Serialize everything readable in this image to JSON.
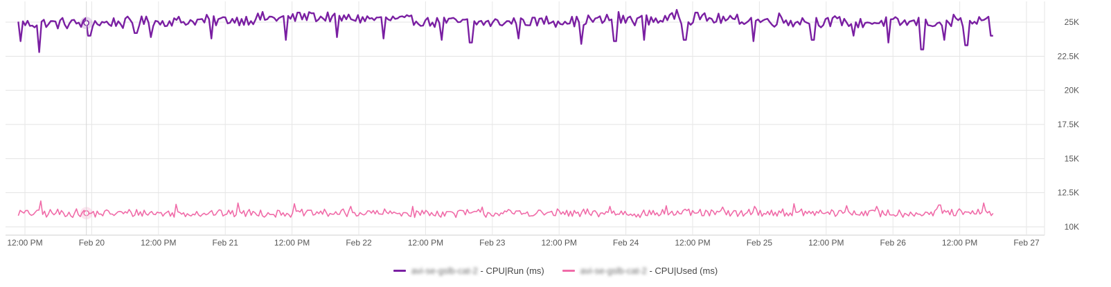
{
  "chart_data": {
    "type": "line",
    "y_ticks": [
      "10K",
      "12.5K",
      "15K",
      "17.5K",
      "20K",
      "22.5K",
      "25K"
    ],
    "y_tick_values": [
      10000,
      12500,
      15000,
      17500,
      20000,
      22500,
      25000
    ],
    "ylim": [
      9750,
      26500
    ],
    "x_ticks": [
      "12:00 PM",
      "Feb 20",
      "12:00 PM",
      "Feb 21",
      "12:00 PM",
      "Feb 22",
      "12:00 PM",
      "Feb 23",
      "12:00 PM",
      "Feb 24",
      "12:00 PM",
      "Feb 25",
      "12:00 PM",
      "Feb 26",
      "12:00 PM",
      "Feb 27"
    ],
    "x_tick_values": [
      19.5,
      20.0,
      20.5,
      21.0,
      21.5,
      22.0,
      22.5,
      23.0,
      23.5,
      24.0,
      24.5,
      25.0,
      25.5,
      26.0,
      26.5,
      27.0
    ],
    "x_unit": "day of February",
    "xlim": [
      19.45,
      27.2
    ],
    "grid": true,
    "legend_placement": "bottom-center",
    "series": [
      {
        "name_hidden": "avi-se-gslb-cat-2",
        "name_suffix": " - CPU|Run (ms)",
        "color": "#7a1fa2",
        "x_range": [
          19.45,
          26.75
        ],
        "baseline_profile": [
          [
            19.45,
            24900
          ],
          [
            20.2,
            24950
          ],
          [
            20.7,
            25050
          ],
          [
            21.1,
            25200
          ],
          [
            21.5,
            25350
          ],
          [
            22.0,
            25300
          ],
          [
            22.5,
            25050
          ],
          [
            23.0,
            24950
          ],
          [
            23.5,
            25100
          ],
          [
            24.0,
            25200
          ],
          [
            24.5,
            25250
          ],
          [
            25.0,
            25100
          ],
          [
            25.5,
            25050
          ],
          [
            26.0,
            24950
          ],
          [
            26.75,
            24950
          ]
        ],
        "noise_amplitude": 450,
        "sample_count": 420,
        "dips": [
          [
            19.47,
            23600
          ],
          [
            19.6,
            22800
          ],
          [
            19.98,
            24000
          ],
          [
            20.33,
            24200
          ],
          [
            20.45,
            23900
          ],
          [
            20.89,
            23800
          ],
          [
            21.45,
            23700
          ],
          [
            21.83,
            23900
          ],
          [
            22.18,
            23800
          ],
          [
            22.62,
            23700
          ],
          [
            22.84,
            23500
          ],
          [
            23.2,
            23800
          ],
          [
            23.67,
            23400
          ],
          [
            23.92,
            23600
          ],
          [
            24.14,
            23700
          ],
          [
            24.44,
            23700
          ],
          [
            24.95,
            23600
          ],
          [
            25.4,
            23700
          ],
          [
            25.7,
            24000
          ],
          [
            25.96,
            23500
          ],
          [
            26.22,
            23000
          ],
          [
            26.38,
            23700
          ],
          [
            26.55,
            23300
          ],
          [
            26.74,
            24000
          ]
        ],
        "peaks": [
          [
            21.28,
            25750
          ],
          [
            21.64,
            25650
          ],
          [
            21.55,
            25700
          ],
          [
            23.95,
            25750
          ],
          [
            24.38,
            25900
          ],
          [
            24.53,
            25700
          ],
          [
            25.15,
            25650
          ],
          [
            26.45,
            25550
          ]
        ]
      },
      {
        "name_hidden": "avi-se-gslb-cat-2",
        "name_suffix": " - CPU|Used (ms)",
        "color": "#f06ba8",
        "x_range": [
          19.45,
          26.75
        ],
        "baseline_profile": [
          [
            19.45,
            11000
          ],
          [
            26.75,
            11000
          ]
        ],
        "noise_amplitude": 320,
        "sample_count": 520,
        "dips": [
          [
            23.65,
            10750
          ],
          [
            24.15,
            10850
          ]
        ],
        "peaks": [
          [
            19.62,
            11900
          ],
          [
            20.63,
            11650
          ],
          [
            21.1,
            11750
          ],
          [
            21.52,
            11700
          ],
          [
            21.94,
            11500
          ],
          [
            22.4,
            11500
          ],
          [
            22.92,
            11450
          ],
          [
            23.88,
            11500
          ],
          [
            24.3,
            11550
          ],
          [
            24.72,
            11450
          ],
          [
            24.96,
            11500
          ],
          [
            25.26,
            11700
          ],
          [
            25.65,
            11550
          ],
          [
            25.88,
            11500
          ],
          [
            26.35,
            11600
          ],
          [
            26.68,
            11750
          ]
        ]
      }
    ],
    "hover_marker_x": 19.96
  }
}
